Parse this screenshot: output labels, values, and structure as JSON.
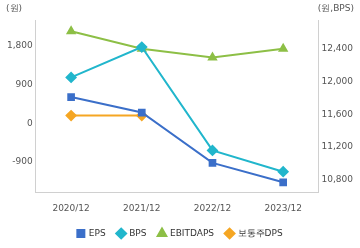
{
  "chart_data": {
    "type": "line",
    "ylabel": "(원)",
    "y2label": "(원,BPS)",
    "categories": [
      "2020/12",
      "2021/12",
      "2022/12",
      "2023/12"
    ],
    "series": [
      {
        "name": "EPS",
        "color": "#3b6fc9",
        "marker": "square",
        "values": [
          610,
          250,
          -920,
          -1370
        ]
      },
      {
        "name": "BPS",
        "color": "#21b6cc",
        "marker": "diamond",
        "axis": "y2",
        "values": [
          12050,
          12420,
          11160,
          10900
        ]
      },
      {
        "name": "EBITDAPS",
        "color": "#8dbf46",
        "marker": "triangle",
        "values": [
          2140,
          1730,
          1530,
          1730
        ]
      },
      {
        "name": "보통주DPS",
        "color": "#f5a623",
        "marker": "diamond",
        "values": [
          180,
          180,
          null,
          null
        ]
      }
    ],
    "ylim": [
      -1600,
      2400
    ],
    "yticks": [
      -900,
      0,
      900,
      {
        "value": 1800,
        "label": "1,800"
      }
    ],
    "y2lim": [
      10650,
      12750
    ],
    "y2ticks": [
      {
        "value": 10800,
        "label": "10,800"
      },
      {
        "value": 11200,
        "label": "11,200"
      },
      {
        "value": 11600,
        "label": "11,600"
      },
      {
        "value": 12000,
        "label": "12,000"
      },
      {
        "value": 12400,
        "label": "12,400"
      }
    ],
    "grid": false,
    "legend": "bottom"
  }
}
